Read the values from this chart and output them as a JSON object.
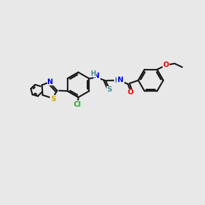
{
  "background_color": "#e8e8e8",
  "bond_color": "#1a1a1a",
  "atom_colors": {
    "S_thiocarbamoyl": "#4a9090",
    "S_thiazole": "#ccaa00",
    "N": "#0000ee",
    "O": "#ee0000",
    "Cl": "#22aa22",
    "H": "#4a9090",
    "C": "#1a1a1a"
  },
  "figsize": [
    3.0,
    3.0
  ],
  "dpi": 100
}
